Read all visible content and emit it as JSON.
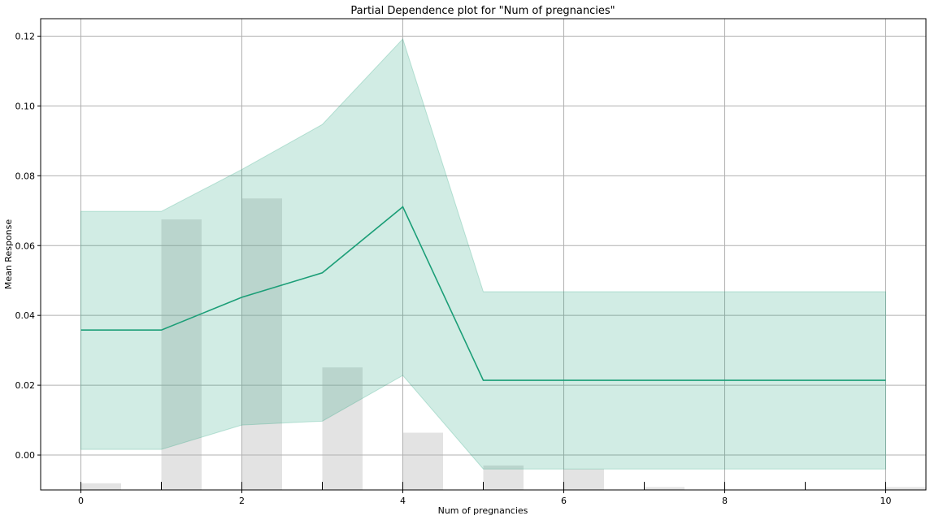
{
  "chart_data": {
    "type": "line",
    "title": "Partial Dependence plot for \"Num of pregnancies\"",
    "xlabel": "Num of pregnancies",
    "ylabel": "Mean Response",
    "xlim": [
      -0.5,
      10.5
    ],
    "ylim": [
      -0.01,
      0.125
    ],
    "x_ticks": [
      0,
      2,
      4,
      6,
      8,
      10
    ],
    "y_ticks": [
      0.0,
      0.02,
      0.04,
      0.06,
      0.08,
      0.1,
      0.12
    ],
    "y_tick_labels": [
      "0.00",
      "0.02",
      "0.04",
      "0.06",
      "0.08",
      "0.10",
      "0.12"
    ],
    "grid": true,
    "series": [
      {
        "x": [
          0,
          1,
          2,
          3,
          4,
          5,
          6,
          7,
          8,
          9,
          10
        ],
        "mean": [
          0.0358,
          0.0358,
          0.0452,
          0.0522,
          0.0711,
          0.0214,
          0.0214,
          0.0214,
          0.0214,
          0.0214,
          0.0214
        ],
        "lower": [
          0.0016,
          0.0016,
          0.0086,
          0.0097,
          0.0228,
          -0.004,
          -0.004,
          -0.004,
          -0.004,
          -0.004,
          -0.004
        ],
        "upper": [
          0.0698,
          0.0698,
          0.0818,
          0.0947,
          0.1192,
          0.0468,
          0.0468,
          0.0468,
          0.0468,
          0.0468,
          0.0468
        ]
      }
    ],
    "histogram": {
      "x": [
        0,
        1,
        2,
        3,
        4,
        5,
        6,
        7,
        8,
        9,
        10
      ],
      "top": [
        -0.0081,
        0.0675,
        0.0735,
        0.0251,
        0.0064,
        -0.003,
        -0.004,
        -0.0092,
        -0.01,
        -0.01,
        -0.0092
      ]
    },
    "colors": {
      "line": "#1b9e77",
      "band": "#1b9e77",
      "bars": "#e3e3e3",
      "grid": "#b0b0b0"
    }
  }
}
